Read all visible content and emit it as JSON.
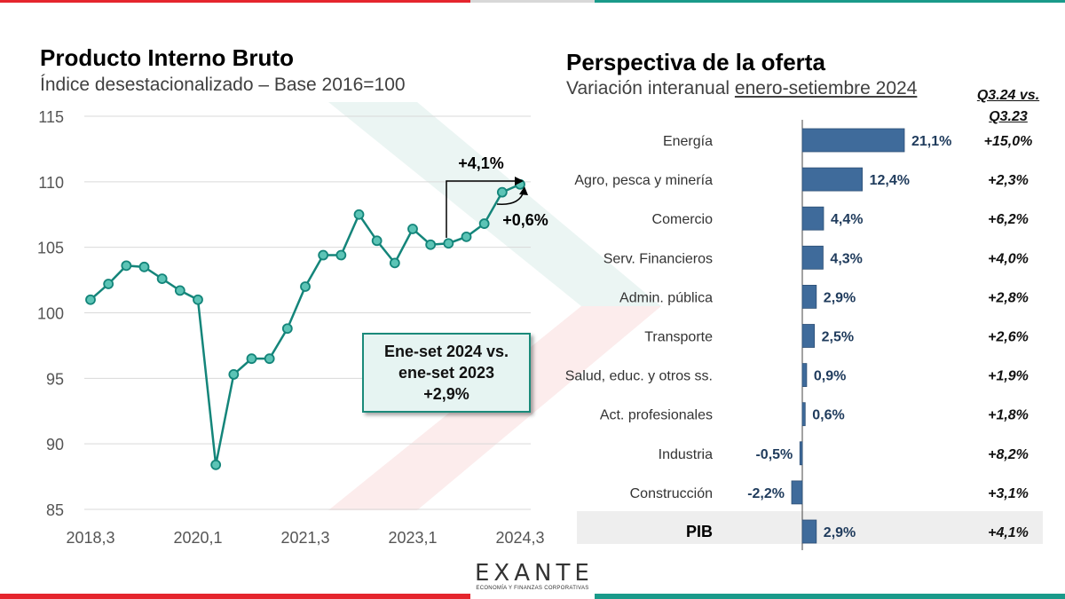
{
  "colors": {
    "red": "#e5252d",
    "teal": "#1a9a8a",
    "line": "#14857a",
    "bar": "#3f6b9b",
    "barText": "#1f3b5c"
  },
  "left": {
    "title": "Producto Interno Bruto",
    "subtitle": "Índice desestacionalizado – Base 2016=100",
    "callout": {
      "line1": "Ene-set 2024 vs.",
      "line2": "ene-set 2023",
      "line3": "+2,9%"
    },
    "annot_yoy": "+4,1%",
    "annot_qoq": "+0,6%"
  },
  "right": {
    "title": "Perspectiva de la oferta",
    "subtitle_prefix": "Variación interanual ",
    "subtitle_underlined": "enero-setiembre 2024",
    "q_header_line1": "Q3.24 vs.",
    "q_header_line2": "Q3.23"
  },
  "logo": {
    "main": "EXANTE",
    "sub": "ECONOMÍA Y FINANZAS CORPORATIVAS"
  },
  "chart_data": [
    {
      "type": "line",
      "title": "Producto Interno Bruto",
      "subtitle": "Índice desestacionalizado – Base 2016=100",
      "x": [
        "2018,3",
        "2018,4",
        "2019,1",
        "2019,2",
        "2019,3",
        "2019,4",
        "2020,1",
        "2020,2",
        "2020,3",
        "2020,4",
        "2021,1",
        "2021,2",
        "2021,3",
        "2021,4",
        "2022,1",
        "2022,2",
        "2022,3",
        "2022,4",
        "2023,1",
        "2023,2",
        "2023,3",
        "2023,4",
        "2024,1",
        "2024,2",
        "2024,3"
      ],
      "x_tick_labels": [
        "2018,3",
        "2020,1",
        "2021,3",
        "2023,1",
        "2024,3"
      ],
      "series": [
        {
          "values": [
            101.0,
            102.2,
            103.6,
            103.5,
            102.6,
            101.7,
            101.0,
            88.4,
            95.3,
            96.5,
            96.5,
            98.8,
            102.0,
            104.4,
            104.4,
            107.5,
            105.5,
            103.8,
            106.4,
            105.2,
            105.3,
            105.8,
            106.8,
            109.2,
            109.8
          ]
        }
      ],
      "ylim": [
        85,
        115
      ],
      "y_ticks": [
        85,
        90,
        95,
        100,
        105,
        110,
        115
      ],
      "grid": "horizontal"
    },
    {
      "type": "bar",
      "orientation": "horizontal",
      "title": "Perspectiva de la oferta",
      "subtitle": "Variación interanual enero-setiembre 2024",
      "categories": [
        "Energía",
        "Agro, pesca y minería",
        "Comercio",
        "Serv. Financieros",
        "Admin. pública",
        "Transporte",
        "Salud, educ. y otros ss.",
        "Act. profesionales",
        "Industria",
        "Construcción",
        "PIB"
      ],
      "values": [
        21.1,
        12.4,
        4.4,
        4.3,
        2.9,
        2.5,
        0.9,
        0.6,
        -0.5,
        -2.2,
        2.9
      ],
      "value_labels": [
        "21,1%",
        "12,4%",
        "4,4%",
        "4,3%",
        "2,9%",
        "2,5%",
        "0,9%",
        "0,6%",
        "-0,5%",
        "-2,2%",
        "2,9%"
      ],
      "q3_column_header": "Q3.24 vs. Q3.23",
      "q3_values": [
        "+15,0%",
        "+2,3%",
        "+6,2%",
        "+4,0%",
        "+2,8%",
        "+2,6%",
        "+1,9%",
        "+1,8%",
        "+8,2%",
        "+3,1%",
        "+4,1%"
      ]
    }
  ]
}
